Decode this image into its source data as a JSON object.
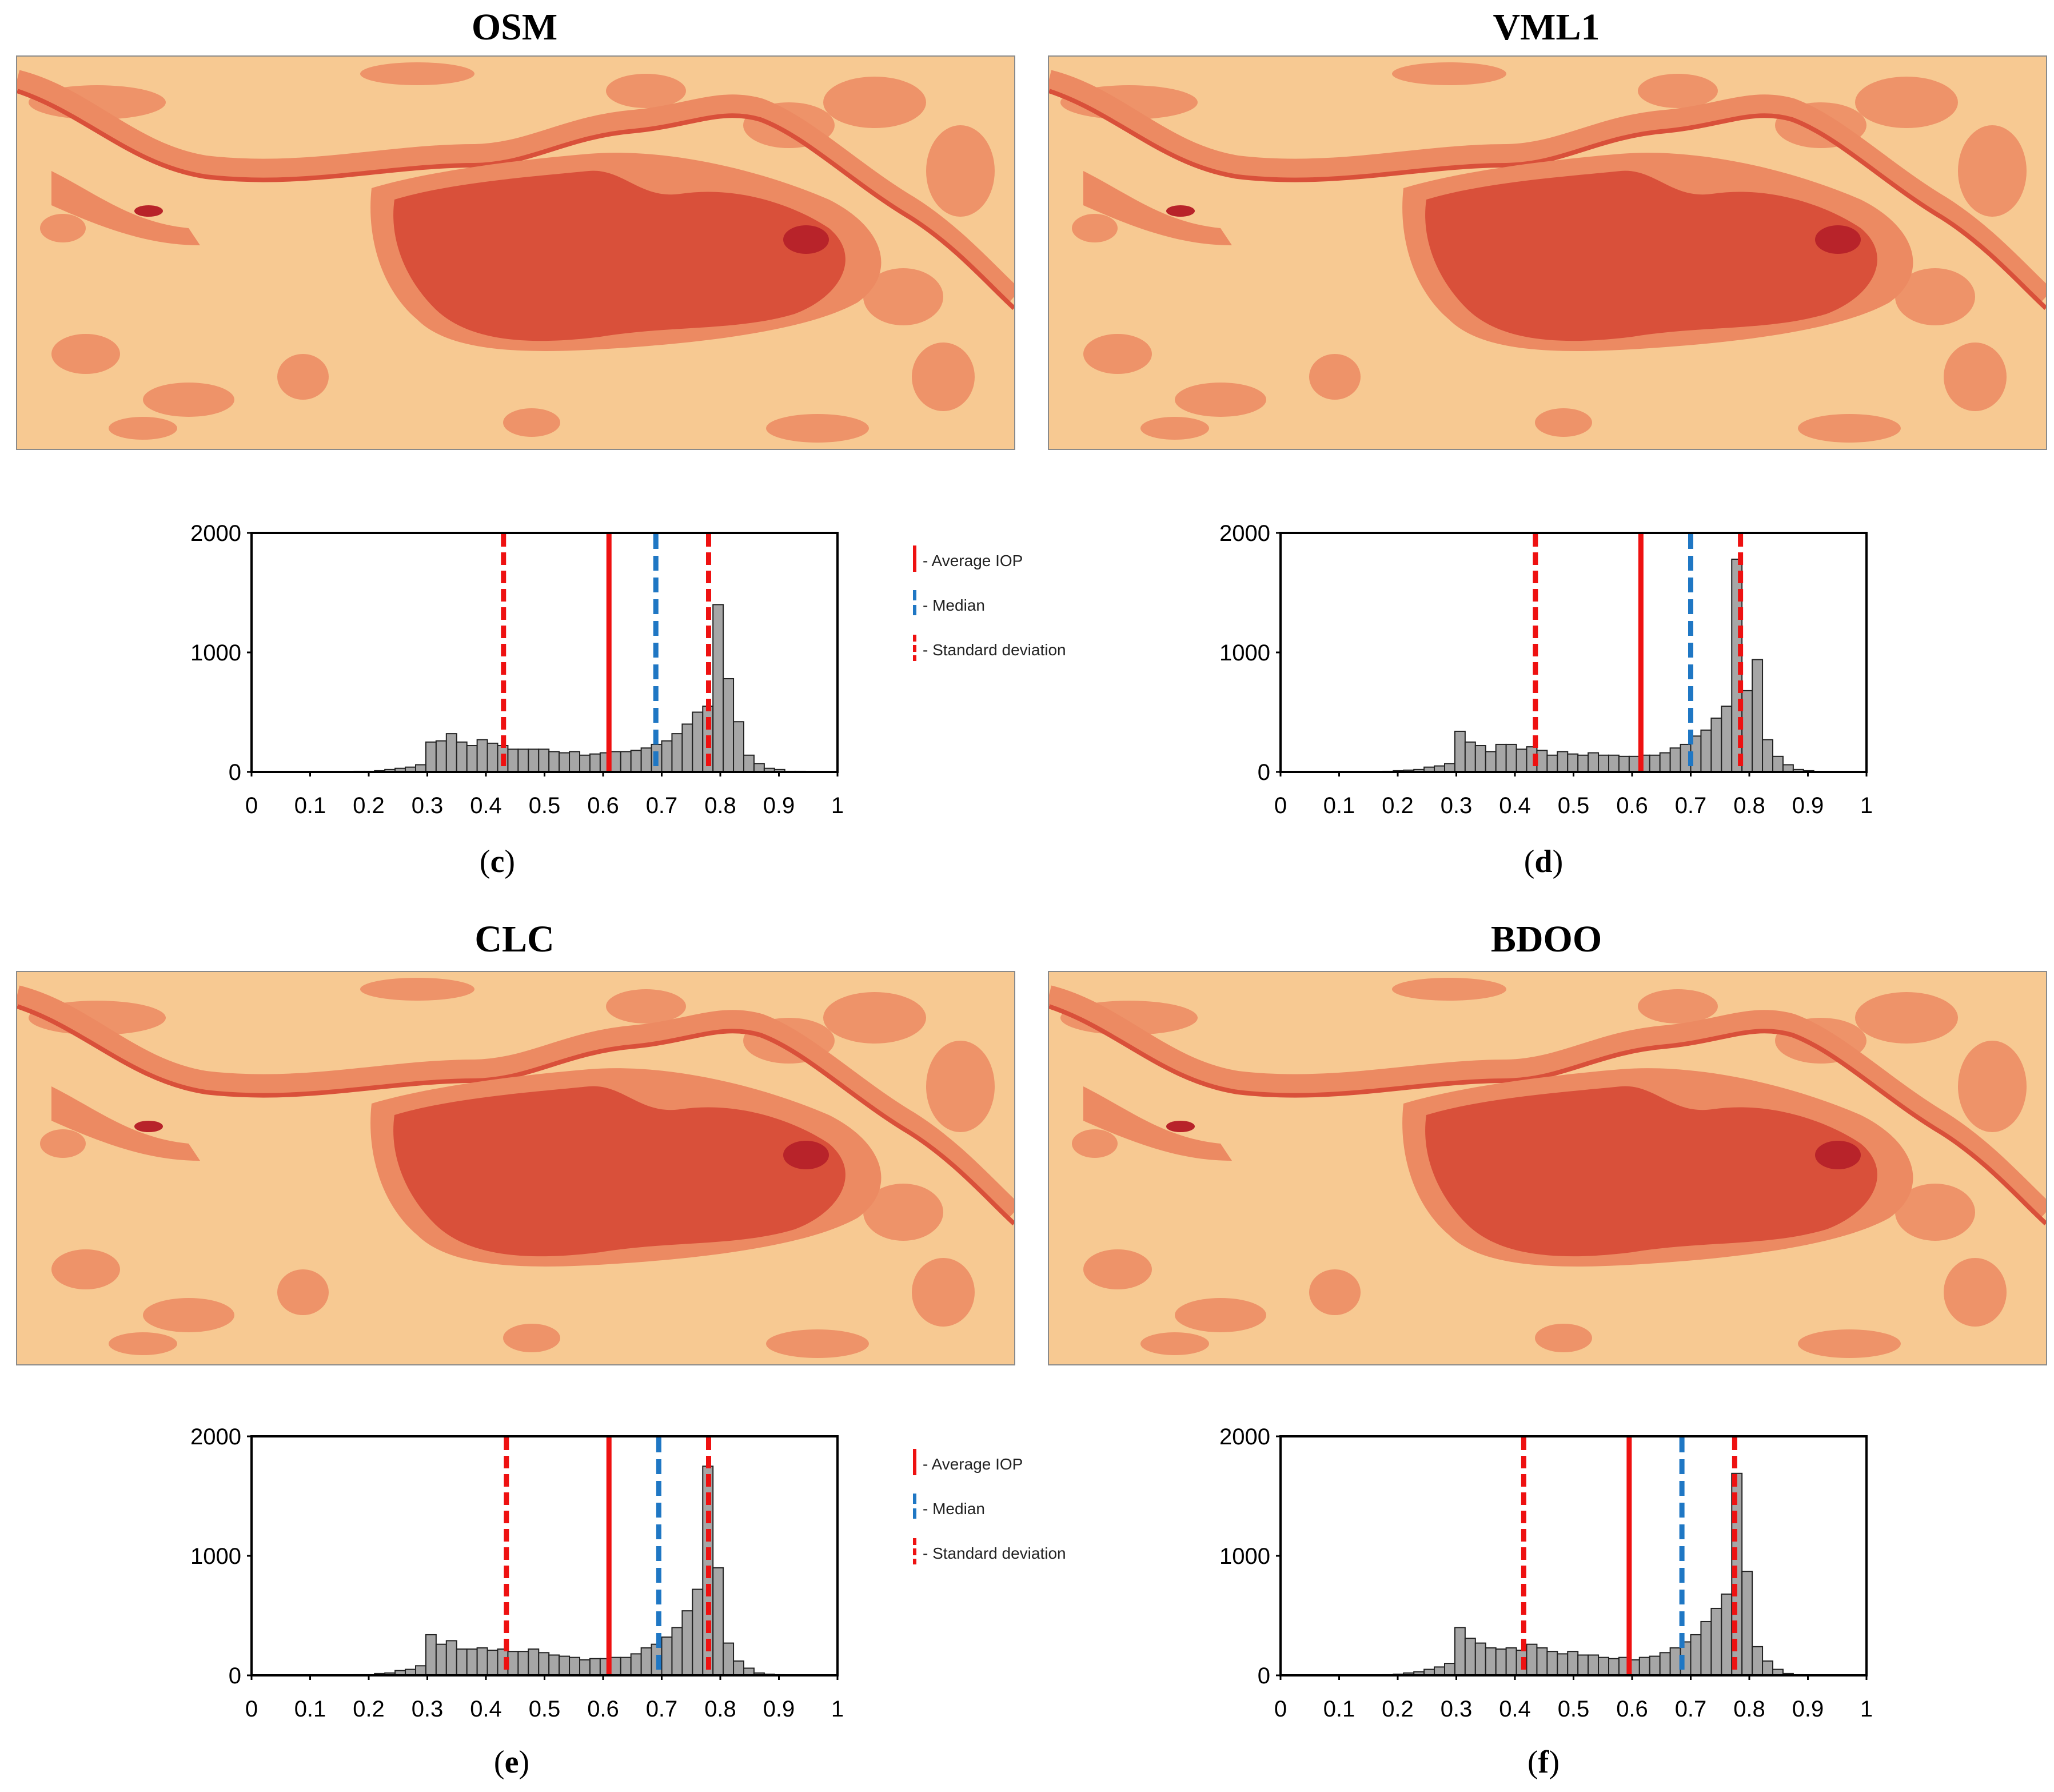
{
  "colors": {
    "map_background": "#f7c992",
    "map_medium": "#ec8a62",
    "map_dark": "#d9503a",
    "map_darkest": "#b8232a",
    "bar_fill": "#a6a6a6",
    "bar_stroke": "#222222",
    "average_line": "#ee1111",
    "median_line": "#1f77c4",
    "std_line": "#ee1111"
  },
  "legend": {
    "average": "- Average IOP",
    "median": "- Median",
    "std": "- Standard deviation"
  },
  "panels": [
    {
      "map_title": "OSM",
      "caption_letter": "c",
      "show_legend": true
    },
    {
      "map_title": "VML1",
      "caption_letter": "d",
      "show_legend": false
    },
    {
      "map_title": "CLC",
      "caption_letter": "e",
      "show_legend": true
    },
    {
      "map_title": "BDOO",
      "caption_letter": "f",
      "show_legend": false
    }
  ],
  "chart_data": [
    {
      "type": "bar",
      "title": "OSM",
      "xlabel": "",
      "ylabel": "",
      "xlim": [
        0,
        1
      ],
      "ylim": [
        0,
        2000
      ],
      "xticks": [
        "0",
        "0.1",
        "0.2",
        "0.3",
        "0.4",
        "0.5",
        "0.6",
        "0.7",
        "0.8",
        "0.9",
        "1"
      ],
      "yticks": [
        "0",
        "1000",
        "2000"
      ],
      "bin_width": 0.0175,
      "bin_starts": [
        0.0,
        0.0175,
        0.035,
        0.0525,
        0.07,
        0.0875,
        0.105,
        0.1225,
        0.14,
        0.1575,
        0.175,
        0.1925,
        0.21,
        0.2275,
        0.245,
        0.2625,
        0.28,
        0.2975,
        0.315,
        0.3325,
        0.35,
        0.3675,
        0.385,
        0.4025,
        0.42,
        0.4375,
        0.455,
        0.4725,
        0.49,
        0.5075,
        0.525,
        0.5425,
        0.56,
        0.5775,
        0.595,
        0.6125,
        0.63,
        0.6475,
        0.665,
        0.6825,
        0.7,
        0.7175,
        0.735,
        0.7525,
        0.77,
        0.7875,
        0.805,
        0.8225,
        0.84,
        0.8575,
        0.875,
        0.8925,
        0.91,
        0.9275,
        0.945,
        0.9625,
        0.98
      ],
      "values": [
        0,
        0,
        0,
        0,
        0,
        0,
        0,
        0,
        0,
        0,
        5,
        5,
        10,
        20,
        30,
        40,
        60,
        250,
        260,
        320,
        250,
        220,
        270,
        240,
        220,
        190,
        190,
        190,
        190,
        170,
        160,
        170,
        140,
        150,
        160,
        170,
        170,
        180,
        200,
        230,
        260,
        320,
        400,
        500,
        550,
        1400,
        780,
        420,
        140,
        70,
        30,
        20,
        5,
        5,
        0,
        0,
        0
      ],
      "average_iop": 0.61,
      "median": 0.69,
      "std_lines": [
        0.43,
        0.78
      ]
    },
    {
      "type": "bar",
      "title": "VML1",
      "xlabel": "",
      "ylabel": "",
      "xlim": [
        0,
        1
      ],
      "ylim": [
        0,
        2000
      ],
      "xticks": [
        "0",
        "0.1",
        "0.2",
        "0.3",
        "0.4",
        "0.5",
        "0.6",
        "0.7",
        "0.8",
        "0.9",
        "1"
      ],
      "yticks": [
        "0",
        "1000",
        "2000"
      ],
      "bin_width": 0.0175,
      "bin_starts": [
        0.0,
        0.0175,
        0.035,
        0.0525,
        0.07,
        0.0875,
        0.105,
        0.1225,
        0.14,
        0.1575,
        0.175,
        0.1925,
        0.21,
        0.2275,
        0.245,
        0.2625,
        0.28,
        0.2975,
        0.315,
        0.3325,
        0.35,
        0.3675,
        0.385,
        0.4025,
        0.42,
        0.4375,
        0.455,
        0.4725,
        0.49,
        0.5075,
        0.525,
        0.5425,
        0.56,
        0.5775,
        0.595,
        0.6125,
        0.63,
        0.6475,
        0.665,
        0.6825,
        0.7,
        0.7175,
        0.735,
        0.7525,
        0.77,
        0.7875,
        0.805,
        0.8225,
        0.84,
        0.8575,
        0.875,
        0.8925,
        0.91,
        0.9275,
        0.945,
        0.9625,
        0.98
      ],
      "values": [
        0,
        0,
        0,
        0,
        0,
        0,
        0,
        0,
        0,
        0,
        5,
        10,
        15,
        20,
        40,
        50,
        70,
        340,
        250,
        220,
        170,
        230,
        230,
        190,
        210,
        180,
        140,
        170,
        150,
        140,
        160,
        140,
        140,
        130,
        130,
        140,
        140,
        160,
        200,
        230,
        300,
        350,
        450,
        550,
        1780,
        680,
        940,
        270,
        130,
        60,
        20,
        10,
        0,
        0,
        0,
        0,
        0
      ],
      "average_iop": 0.615,
      "median": 0.7,
      "std_lines": [
        0.435,
        0.785
      ]
    },
    {
      "type": "bar",
      "title": "CLC",
      "xlabel": "",
      "ylabel": "",
      "xlim": [
        0,
        1
      ],
      "ylim": [
        0,
        2000
      ],
      "xticks": [
        "0",
        "0.1",
        "0.2",
        "0.3",
        "0.4",
        "0.5",
        "0.6",
        "0.7",
        "0.8",
        "0.9",
        "1"
      ],
      "yticks": [
        "0",
        "1000",
        "2000"
      ],
      "bin_width": 0.0175,
      "bin_starts": [
        0.0,
        0.0175,
        0.035,
        0.0525,
        0.07,
        0.0875,
        0.105,
        0.1225,
        0.14,
        0.1575,
        0.175,
        0.1925,
        0.21,
        0.2275,
        0.245,
        0.2625,
        0.28,
        0.2975,
        0.315,
        0.3325,
        0.35,
        0.3675,
        0.385,
        0.4025,
        0.42,
        0.4375,
        0.455,
        0.4725,
        0.49,
        0.5075,
        0.525,
        0.5425,
        0.56,
        0.5775,
        0.595,
        0.6125,
        0.63,
        0.6475,
        0.665,
        0.6825,
        0.7,
        0.7175,
        0.735,
        0.7525,
        0.77,
        0.7875,
        0.805,
        0.8225,
        0.84,
        0.8575,
        0.875,
        0.8925,
        0.91,
        0.9275,
        0.945,
        0.9625,
        0.98
      ],
      "values": [
        0,
        0,
        0,
        0,
        0,
        0,
        0,
        0,
        0,
        0,
        5,
        5,
        15,
        20,
        40,
        50,
        80,
        340,
        260,
        290,
        220,
        220,
        230,
        210,
        220,
        200,
        200,
        220,
        190,
        170,
        160,
        150,
        130,
        140,
        140,
        150,
        150,
        180,
        230,
        260,
        320,
        400,
        540,
        720,
        1750,
        900,
        270,
        120,
        60,
        20,
        10,
        5,
        0,
        0,
        0,
        0,
        0
      ],
      "average_iop": 0.61,
      "median": 0.695,
      "std_lines": [
        0.435,
        0.78
      ]
    },
    {
      "type": "bar",
      "title": "BDOO",
      "xlabel": "",
      "ylabel": "",
      "xlim": [
        0,
        1
      ],
      "ylim": [
        0,
        2000
      ],
      "xticks": [
        "0",
        "0.1",
        "0.2",
        "0.3",
        "0.4",
        "0.5",
        "0.6",
        "0.7",
        "0.8",
        "0.9",
        "1"
      ],
      "yticks": [
        "0",
        "1000",
        "2000"
      ],
      "bin_width": 0.0175,
      "bin_starts": [
        0.0,
        0.0175,
        0.035,
        0.0525,
        0.07,
        0.0875,
        0.105,
        0.1225,
        0.14,
        0.1575,
        0.175,
        0.1925,
        0.21,
        0.2275,
        0.245,
        0.2625,
        0.28,
        0.2975,
        0.315,
        0.3325,
        0.35,
        0.3675,
        0.385,
        0.4025,
        0.42,
        0.4375,
        0.455,
        0.4725,
        0.49,
        0.5075,
        0.525,
        0.5425,
        0.56,
        0.5775,
        0.595,
        0.6125,
        0.63,
        0.6475,
        0.665,
        0.6825,
        0.7,
        0.7175,
        0.735,
        0.7525,
        0.77,
        0.7875,
        0.805,
        0.8225,
        0.84,
        0.8575,
        0.875,
        0.8925,
        0.91,
        0.9275,
        0.945,
        0.9625,
        0.98
      ],
      "values": [
        0,
        0,
        0,
        0,
        0,
        0,
        0,
        0,
        0,
        0,
        5,
        10,
        20,
        30,
        50,
        70,
        100,
        400,
        310,
        270,
        230,
        220,
        230,
        210,
        260,
        230,
        200,
        180,
        200,
        170,
        170,
        150,
        140,
        150,
        130,
        150,
        160,
        190,
        230,
        280,
        340,
        450,
        560,
        680,
        1690,
        870,
        240,
        120,
        50,
        15,
        5,
        0,
        0,
        0,
        0,
        0,
        0
      ],
      "average_iop": 0.595,
      "median": 0.685,
      "std_lines": [
        0.415,
        0.775
      ]
    }
  ]
}
